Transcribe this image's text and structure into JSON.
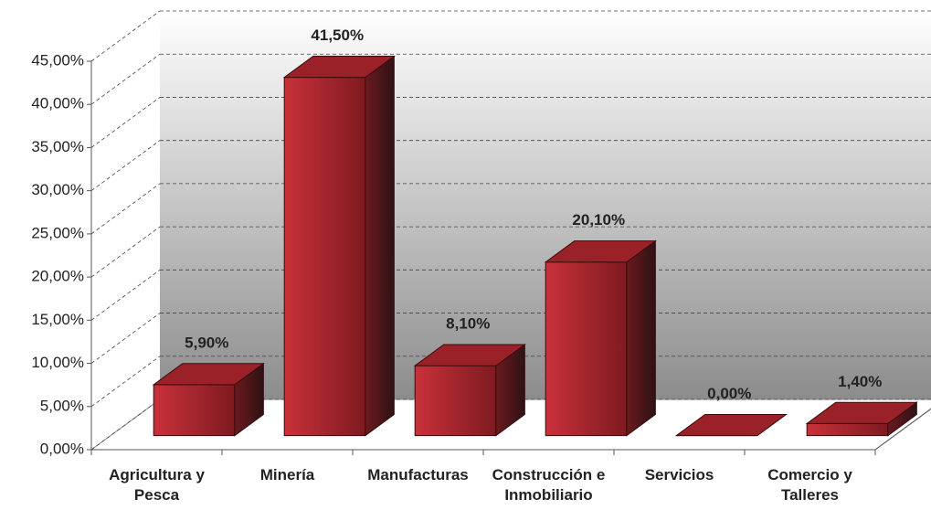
{
  "chart_data": {
    "type": "bar3d",
    "categories": [
      "Agricultura y Pesca",
      "Minería",
      "Manufacturas",
      "Construcción e Inmobiliario",
      "Servicios",
      "Comercio y Talleres"
    ],
    "values": [
      5.9,
      41.5,
      8.1,
      20.1,
      0,
      1.4
    ],
    "value_labels": [
      "5,90%",
      "41,50%",
      "8,10%",
      "20,10%",
      "0,00%",
      "1,40%"
    ],
    "color": "#b0232a",
    "ylim": [
      0,
      45
    ],
    "yticks": [
      {
        "value": 0,
        "label": "0,00%"
      },
      {
        "value": 5,
        "label": "5,00%"
      },
      {
        "value": 10,
        "label": "10,00%"
      },
      {
        "value": 15,
        "label": "15,00%"
      },
      {
        "value": 20,
        "label": "20,00%"
      },
      {
        "value": 25,
        "label": "25,00%"
      },
      {
        "value": 30,
        "label": "30,00%"
      },
      {
        "value": 35,
        "label": "35,00%"
      },
      {
        "value": 40,
        "label": "40,00%"
      },
      {
        "value": 45,
        "label": "45,00%"
      }
    ],
    "grid": true
  }
}
